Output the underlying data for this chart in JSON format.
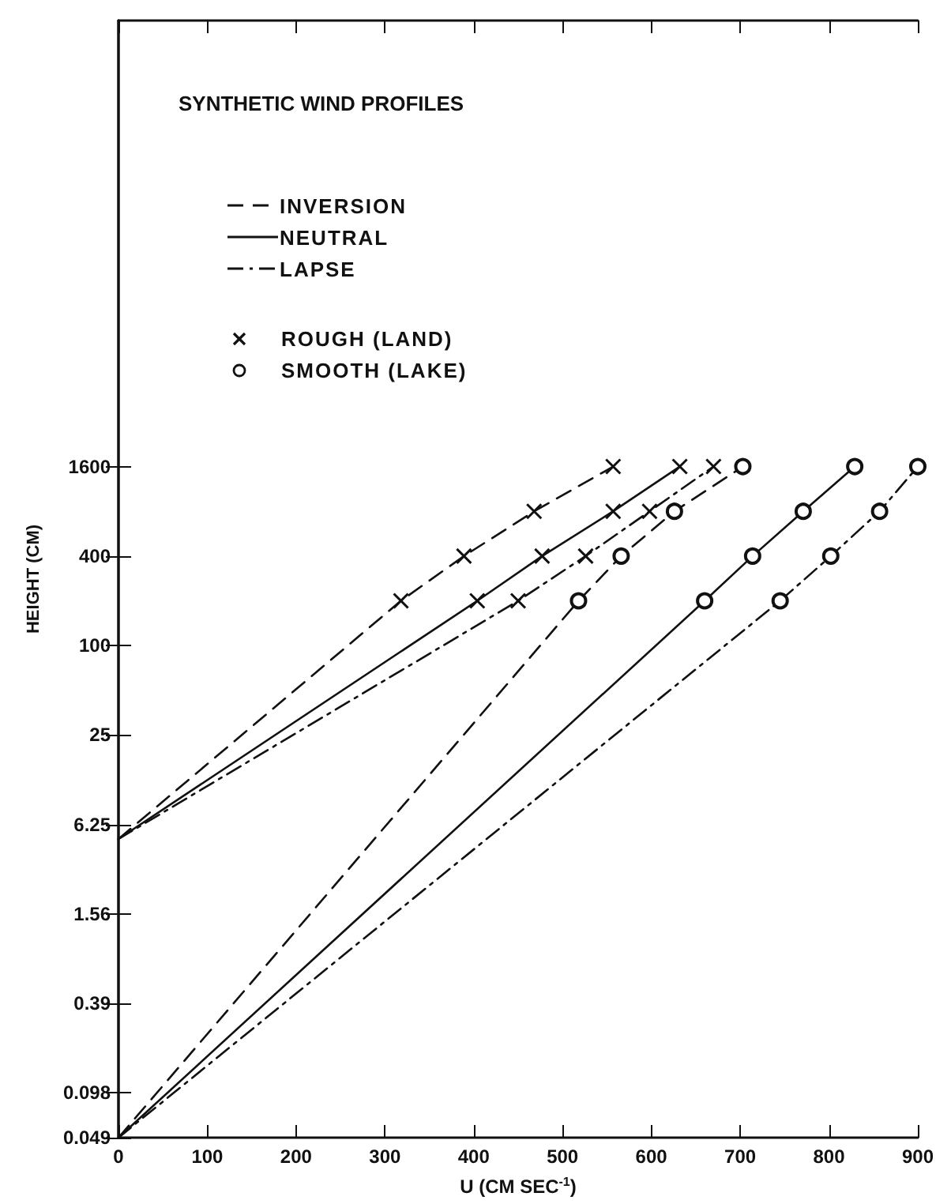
{
  "chart_data": {
    "type": "line",
    "title": "SYNTHETIC WIND PROFILES",
    "xlabel": "U (CM SEC$^{-1}$)",
    "ylabel": "HEIGHT (CM)",
    "annotations": [
      "INVERSION",
      "NEUTRAL",
      "LAPSE",
      "ROUGH (LAND)",
      "SMOOTH (LAKE)"
    ],
    "log": "y",
    "grid": false,
    "xlim": [
      0,
      900
    ],
    "xticks": [
      0,
      100,
      200,
      300,
      400,
      500,
      600,
      700,
      800,
      900
    ],
    "ylim": [
      0.049,
      1600000
    ],
    "yticks": [
      0.049,
      0.098,
      0.39,
      1.56,
      6.25,
      25,
      100,
      400,
      1600
    ],
    "series": [
      {
        "color": "#111111",
        "line_style": "dashed",
        "marker": "cross",
        "x": [
          0,
          318,
          389,
          468,
          557
        ],
        "values": [
          5,
          200,
          400,
          800,
          1600
        ]
      },
      {
        "color": "#111111",
        "line_style": "solid",
        "marker": "cross",
        "x": [
          0,
          404,
          477,
          557,
          632
        ],
        "values": [
          5,
          200,
          400,
          800,
          1600
        ]
      },
      {
        "color": "#111111",
        "line_style": "dotted",
        "marker": "cross",
        "x": [
          0,
          450,
          526,
          598,
          670
        ],
        "values": [
          5,
          200,
          400,
          800,
          1600
        ]
      },
      {
        "color": "#111111",
        "line_style": "dashed",
        "marker": "circle",
        "x": [
          0,
          518,
          566,
          626,
          703
        ],
        "values": [
          0.049,
          200,
          400,
          800,
          1600
        ]
      },
      {
        "color": "#111111",
        "line_style": "solid",
        "marker": "circle",
        "x": [
          0,
          660,
          714,
          771,
          829
        ],
        "values": [
          0.049,
          200,
          400,
          800,
          1600
        ]
      },
      {
        "color": "#111111",
        "line_style": "dotted",
        "marker": "circle",
        "x": [
          0,
          745,
          802,
          857,
          900
        ],
        "values": [
          0.049,
          200,
          400,
          800,
          1600
        ]
      }
    ]
  }
}
